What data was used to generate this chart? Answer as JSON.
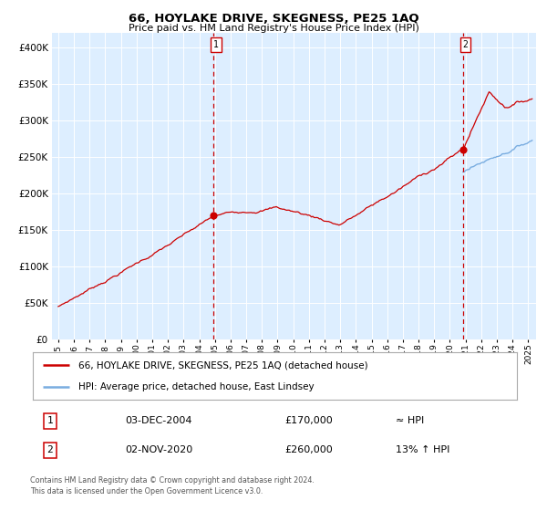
{
  "title": "66, HOYLAKE DRIVE, SKEGNESS, PE25 1AQ",
  "subtitle": "Price paid vs. HM Land Registry's House Price Index (HPI)",
  "bg_color": "#ddeeff",
  "hpi_color": "#7aade0",
  "price_color": "#cc0000",
  "dashed_line_color": "#cc0000",
  "marker_color": "#cc0000",
  "ylim": [
    0,
    420000
  ],
  "yticks": [
    0,
    50000,
    100000,
    150000,
    200000,
    250000,
    300000,
    350000,
    400000
  ],
  "ytick_labels": [
    "£0",
    "£50K",
    "£100K",
    "£150K",
    "£200K",
    "£250K",
    "£300K",
    "£350K",
    "£400K"
  ],
  "sale1_price": 170000,
  "sale2_price": 260000,
  "legend_line1": "66, HOYLAKE DRIVE, SKEGNESS, PE25 1AQ (detached house)",
  "legend_line2": "HPI: Average price, detached house, East Lindsey",
  "table_row1": [
    "1",
    "03-DEC-2004",
    "£170,000",
    "≈ HPI"
  ],
  "table_row2": [
    "2",
    "02-NOV-2020",
    "£260,000",
    "13% ↑ HPI"
  ],
  "footer": "Contains HM Land Registry data © Crown copyright and database right 2024.\nThis data is licensed under the Open Government Licence v3.0."
}
